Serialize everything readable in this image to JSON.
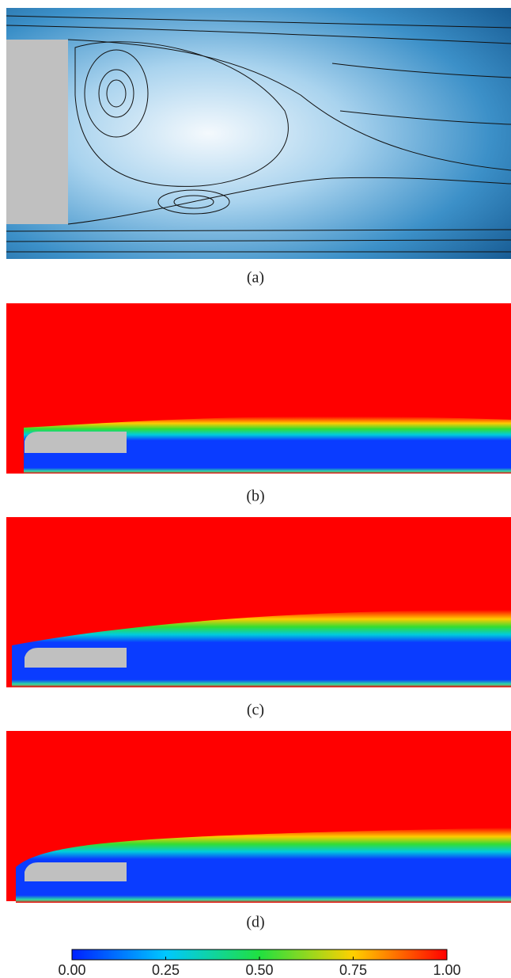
{
  "panels": [
    {
      "label": "(a)"
    },
    {
      "label": "(b)"
    },
    {
      "label": "(c)"
    },
    {
      "label": "(d)"
    }
  ],
  "colorbar": {
    "range": [
      0,
      1
    ],
    "ticks": [
      {
        "value": 0,
        "label": "0.00"
      },
      {
        "value": 0.25,
        "label": "0.25"
      },
      {
        "value": 0.5,
        "label": "0.50"
      },
      {
        "value": 0.75,
        "label": "0.75"
      },
      {
        "value": 1,
        "label": "1.00"
      }
    ]
  }
}
